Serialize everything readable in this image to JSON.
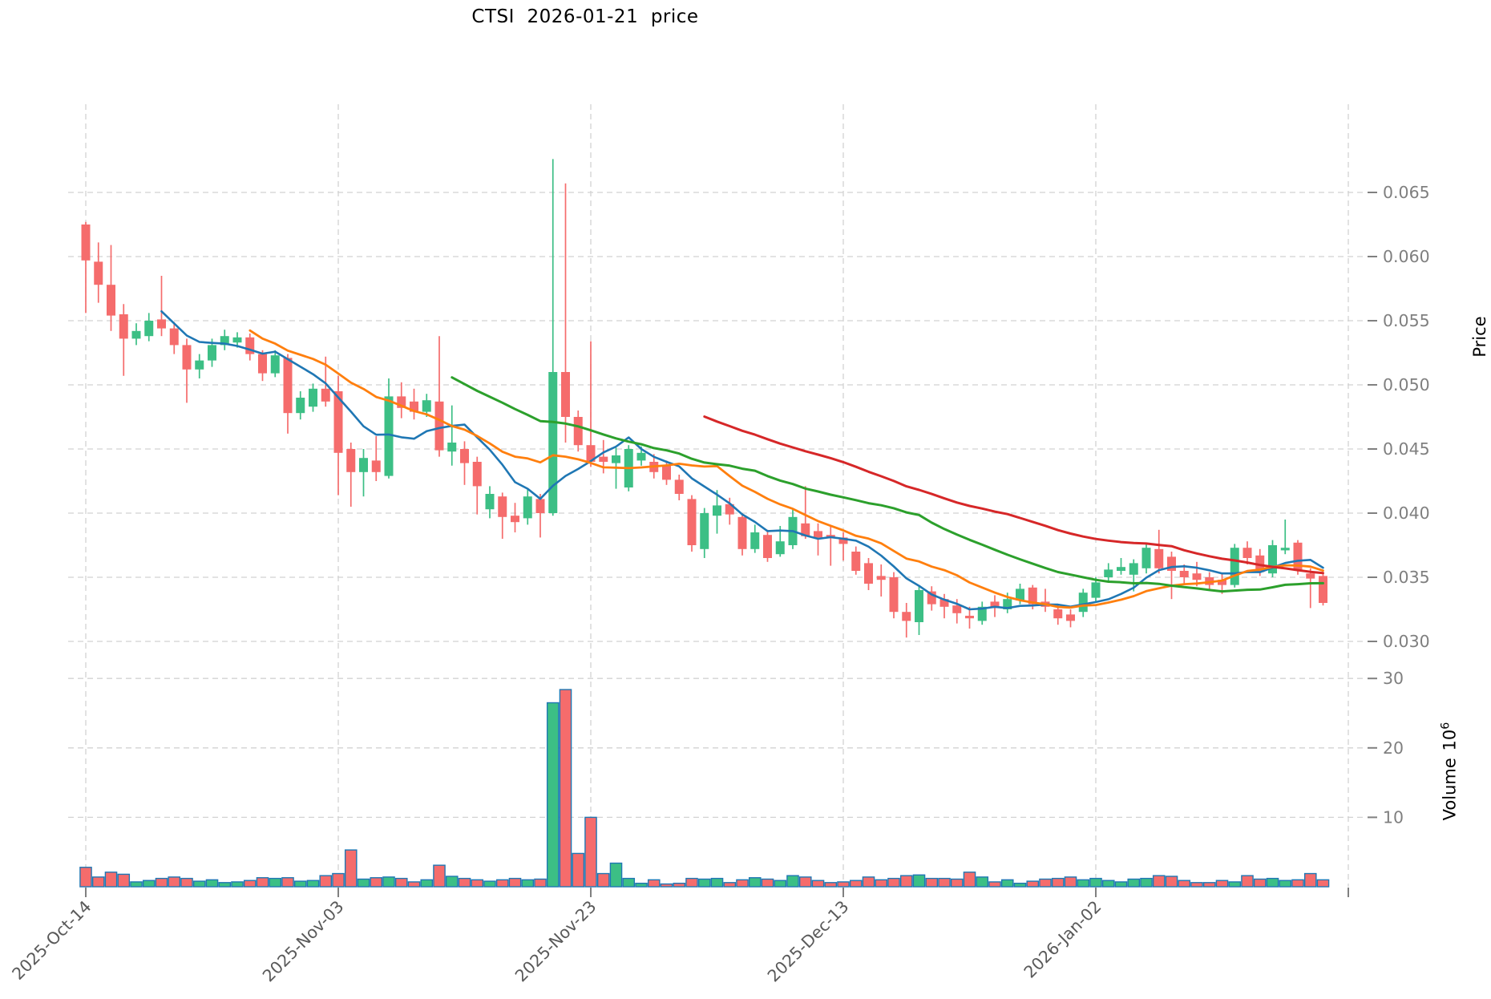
{
  "title": "CTSI  2026-01-21  price",
  "axes": {
    "price_label": "Price",
    "volume_label_text": "Volume",
    "volume_label_base": "10",
    "volume_label_exp": "6",
    "price_tick_labels": [
      "0.065",
      "0.060",
      "0.055",
      "0.050",
      "0.045",
      "0.040",
      "0.035",
      "0.030"
    ],
    "volume_tick_labels": [
      "30",
      "20",
      "10"
    ],
    "x_tick_labels": [
      "2025-Oct-14",
      "2025-Nov-03",
      "2025-Nov-23",
      "2025-Dec-13",
      "2026-Jan-02",
      ""
    ]
  },
  "colors": {
    "up": "#3cbf85",
    "down": "#f56c6c",
    "volume_edge": "#1f77b4",
    "ma7": "#1f77b4",
    "ma14": "#ff7f0e",
    "ma30": "#2ca02c",
    "ma50": "#d62728",
    "grid": "#d2d2d2",
    "tick_text": "#7f7f7f",
    "date_text": "#595959",
    "tick_mark": "#808080"
  },
  "chart_data": {
    "type": "candlestick+volume",
    "title": "CTSI  2026-01-21  price",
    "start_date": "2025-10-14",
    "n_days": 99,
    "x_tick_indices": [
      0,
      20,
      40,
      60,
      80,
      100
    ],
    "x_tick_labels": [
      "2025-Oct-14",
      "2025-Nov-03",
      "2025-Nov-23",
      "2025-Dec-13",
      "2026-Jan-02",
      ""
    ],
    "price_ticks": [
      0.065,
      0.06,
      0.055,
      0.05,
      0.045,
      0.04,
      0.035,
      0.03
    ],
    "price_ylim": [
      0.0291,
      0.0719
    ],
    "volume_ticks": [
      10,
      20,
      30
    ],
    "volume_ylim": [
      0,
      33.2
    ],
    "volume_unit": "10^6",
    "moving_average_windows": [
      7,
      14,
      30,
      50
    ],
    "open": [
      0.0625,
      0.0596,
      0.0578,
      0.0555,
      0.0536,
      0.0538,
      0.0551,
      0.0544,
      0.0531,
      0.0512,
      0.0519,
      0.0531,
      0.0533,
      0.0537,
      0.0524,
      0.0509,
      0.0521,
      0.0478,
      0.0483,
      0.0497,
      0.0495,
      0.045,
      0.0432,
      0.0441,
      0.0429,
      0.0491,
      0.0487,
      0.0479,
      0.0487,
      0.0448,
      0.045,
      0.044,
      0.0403,
      0.0413,
      0.0398,
      0.0396,
      0.0411,
      0.04,
      0.051,
      0.0475,
      0.0453,
      0.0444,
      0.0439,
      0.042,
      0.0441,
      0.044,
      0.0437,
      0.0426,
      0.0411,
      0.0372,
      0.0398,
      0.0407,
      0.0397,
      0.0372,
      0.0383,
      0.0368,
      0.0375,
      0.0392,
      0.0386,
      0.0383,
      0.0381,
      0.037,
      0.0361,
      0.0351,
      0.035,
      0.0323,
      0.0315,
      0.0339,
      0.0333,
      0.0328,
      0.032,
      0.0316,
      0.0331,
      0.0325,
      0.0332,
      0.0342,
      0.0331,
      0.0325,
      0.0321,
      0.0323,
      0.0334,
      0.035,
      0.0355,
      0.0352,
      0.0357,
      0.0372,
      0.0366,
      0.0355,
      0.0353,
      0.035,
      0.0348,
      0.0344,
      0.0373,
      0.0367,
      0.0353,
      0.0371,
      0.0377,
      0.0353,
      0.0351
    ],
    "high": [
      0.0627,
      0.0611,
      0.0609,
      0.0563,
      0.0548,
      0.0556,
      0.0585,
      0.0549,
      0.0536,
      0.0524,
      0.0536,
      0.0543,
      0.0541,
      0.054,
      0.0527,
      0.0527,
      0.0524,
      0.0495,
      0.0501,
      0.0522,
      0.0507,
      0.0455,
      0.045,
      0.046,
      0.0505,
      0.0502,
      0.0497,
      0.0493,
      0.0538,
      0.0484,
      0.0456,
      0.0444,
      0.0421,
      0.0416,
      0.0408,
      0.0419,
      0.0415,
      0.0676,
      0.0657,
      0.048,
      0.0534,
      0.0457,
      0.0451,
      0.0453,
      0.0452,
      0.0446,
      0.0441,
      0.043,
      0.0414,
      0.0404,
      0.0418,
      0.0412,
      0.04,
      0.0391,
      0.0387,
      0.039,
      0.0404,
      0.0421,
      0.0392,
      0.039,
      0.0385,
      0.0374,
      0.0365,
      0.036,
      0.0354,
      0.033,
      0.0344,
      0.0343,
      0.0337,
      0.0333,
      0.0327,
      0.0331,
      0.0336,
      0.0338,
      0.0345,
      0.0344,
      0.0341,
      0.0329,
      0.0325,
      0.0341,
      0.035,
      0.0361,
      0.0365,
      0.0364,
      0.0376,
      0.0387,
      0.037,
      0.036,
      0.0362,
      0.0354,
      0.0353,
      0.0376,
      0.0378,
      0.0372,
      0.0379,
      0.0395,
      0.0379,
      0.0357,
      0.0354
    ],
    "low": [
      0.0556,
      0.0564,
      0.0542,
      0.0507,
      0.0531,
      0.0534,
      0.0538,
      0.0524,
      0.0486,
      0.0505,
      0.0514,
      0.0527,
      0.0529,
      0.0519,
      0.0503,
      0.0506,
      0.0462,
      0.0473,
      0.0479,
      0.0483,
      0.0414,
      0.0405,
      0.0413,
      0.0425,
      0.0427,
      0.0474,
      0.0473,
      0.0475,
      0.0444,
      0.0437,
      0.0422,
      0.0399,
      0.0396,
      0.038,
      0.0385,
      0.0391,
      0.0381,
      0.0398,
      0.0455,
      0.0448,
      0.0436,
      0.0431,
      0.0419,
      0.0417,
      0.0437,
      0.0427,
      0.0422,
      0.041,
      0.037,
      0.0365,
      0.0384,
      0.0391,
      0.0367,
      0.0369,
      0.0362,
      0.0366,
      0.0372,
      0.038,
      0.0367,
      0.0359,
      0.0363,
      0.0352,
      0.034,
      0.0335,
      0.0318,
      0.0303,
      0.0305,
      0.0324,
      0.0318,
      0.0314,
      0.031,
      0.0313,
      0.0319,
      0.0322,
      0.0329,
      0.0325,
      0.0323,
      0.0313,
      0.0311,
      0.0319,
      0.0331,
      0.0347,
      0.0352,
      0.0339,
      0.0353,
      0.0353,
      0.0333,
      0.0344,
      0.0343,
      0.034,
      0.0337,
      0.0342,
      0.036,
      0.0351,
      0.035,
      0.0368,
      0.0352,
      0.0326,
      0.0328
    ],
    "close": [
      0.0597,
      0.0578,
      0.0554,
      0.0536,
      0.0542,
      0.055,
      0.0544,
      0.0531,
      0.0512,
      0.0519,
      0.0531,
      0.0538,
      0.0537,
      0.0524,
      0.0509,
      0.0523,
      0.0478,
      0.049,
      0.0497,
      0.0487,
      0.0447,
      0.0432,
      0.0443,
      0.0432,
      0.0491,
      0.0482,
      0.0479,
      0.0488,
      0.0449,
      0.0455,
      0.0439,
      0.0421,
      0.0415,
      0.0397,
      0.0393,
      0.0413,
      0.04,
      0.051,
      0.0475,
      0.0453,
      0.044,
      0.044,
      0.0445,
      0.045,
      0.0447,
      0.0432,
      0.0426,
      0.0415,
      0.0375,
      0.04,
      0.0406,
      0.0399,
      0.0372,
      0.0385,
      0.0365,
      0.0378,
      0.0397,
      0.0382,
      0.0381,
      0.0381,
      0.0376,
      0.0355,
      0.0345,
      0.0348,
      0.0323,
      0.0316,
      0.034,
      0.0329,
      0.0327,
      0.0322,
      0.0318,
      0.0327,
      0.0326,
      0.0333,
      0.0341,
      0.0329,
      0.0327,
      0.0318,
      0.0316,
      0.0338,
      0.0346,
      0.0356,
      0.0358,
      0.0361,
      0.0373,
      0.0357,
      0.0355,
      0.035,
      0.0348,
      0.0344,
      0.0344,
      0.0373,
      0.0365,
      0.0354,
      0.0375,
      0.0373,
      0.0356,
      0.0349,
      0.033
    ],
    "volume_millions": [
      2.8,
      1.4,
      2.1,
      1.8,
      0.7,
      0.9,
      1.2,
      1.4,
      1.2,
      0.8,
      1.0,
      0.6,
      0.7,
      0.9,
      1.3,
      1.2,
      1.3,
      0.8,
      0.9,
      1.6,
      1.9,
      5.3,
      1.1,
      1.3,
      1.4,
      1.2,
      0.7,
      1.0,
      3.1,
      1.5,
      1.2,
      1.0,
      0.8,
      1.0,
      1.2,
      1.0,
      1.1,
      26.5,
      28.4,
      4.8,
      10.0,
      1.9,
      3.4,
      1.2,
      0.5,
      1.0,
      0.4,
      0.5,
      1.2,
      1.1,
      1.2,
      0.6,
      1.0,
      1.3,
      1.1,
      0.9,
      1.6,
      1.4,
      0.9,
      0.6,
      0.7,
      0.9,
      1.4,
      1.0,
      1.2,
      1.6,
      1.7,
      1.2,
      1.2,
      1.1,
      2.1,
      1.4,
      0.7,
      1.0,
      0.5,
      0.8,
      1.1,
      1.2,
      1.4,
      1.0,
      1.2,
      0.9,
      0.7,
      1.1,
      1.2,
      1.6,
      1.5,
      0.9,
      0.6,
      0.6,
      0.9,
      0.7,
      1.6,
      1.1,
      1.2,
      0.9,
      1.0,
      1.9,
      1.0
    ]
  }
}
